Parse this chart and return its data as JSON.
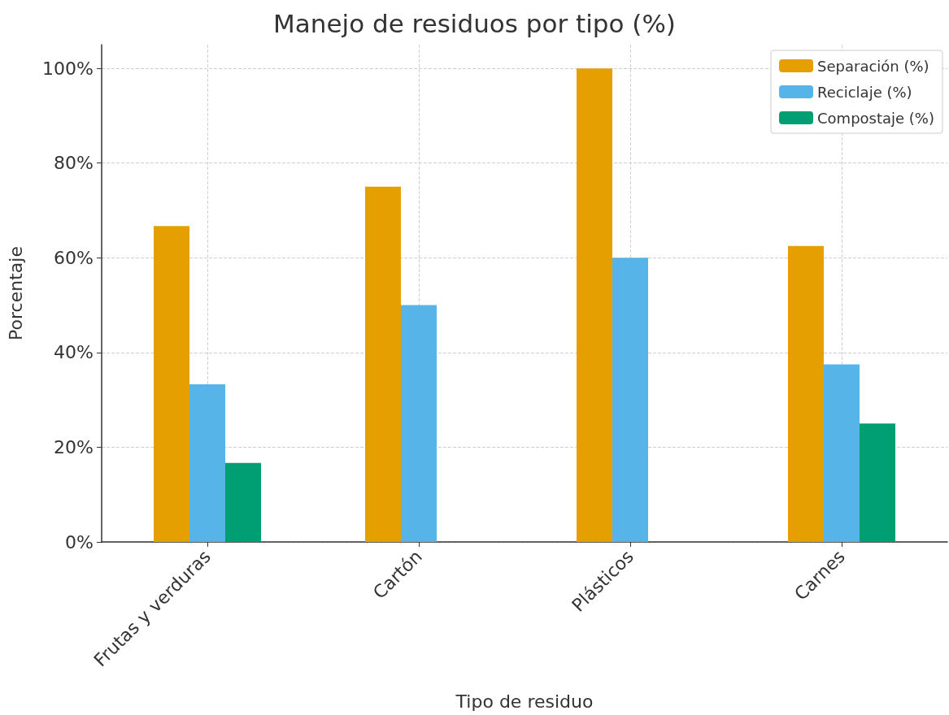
{
  "chart_data": {
    "type": "bar",
    "title": "Manejo de residuos por tipo (%)",
    "xlabel": "Tipo de residuo",
    "ylabel": "Porcentaje",
    "categories": [
      "Frutas y verduras",
      "Cartón",
      "Plásticos",
      "Carnes"
    ],
    "series": [
      {
        "name": "Separación (%)",
        "color": "#e69f00",
        "values": [
          66.7,
          75,
          100,
          62.5
        ]
      },
      {
        "name": "Reciclaje (%)",
        "color": "#56b4e9",
        "values": [
          33.3,
          50,
          60,
          37.5
        ]
      },
      {
        "name": "Compostaje (%)",
        "color": "#009e73",
        "values": [
          16.7,
          null,
          null,
          25
        ]
      }
    ],
    "ylim": [
      0,
      105
    ],
    "yticks": [
      {
        "value": 0,
        "label": "0%"
      },
      {
        "value": 20,
        "label": "20%"
      },
      {
        "value": 40,
        "label": "40%"
      },
      {
        "value": 60,
        "label": "60%"
      },
      {
        "value": 80,
        "label": "80%"
      },
      {
        "value": 100,
        "label": "100%"
      }
    ],
    "grid": true,
    "legend": "top right"
  }
}
